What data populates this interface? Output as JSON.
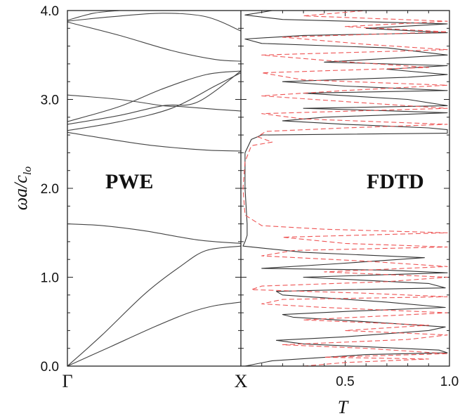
{
  "chart_data": {
    "type": "line",
    "ylabel": "ωa/c",
    "ylabel_sub": "lo",
    "ylim": [
      0,
      4
    ],
    "yticks": [
      "0.0",
      "1.0",
      "2.0",
      "3.0",
      "4.0"
    ],
    "colors": {
      "axis": "#222222",
      "band": "#555555",
      "pwe": "#444444",
      "fdtd_black": "#333333",
      "fdtd_red": "#ee5555"
    },
    "panels": [
      {
        "id": "pwe",
        "label": "PWE",
        "xaxis": "k-path",
        "xtick_labels": [
          "Γ",
          "X"
        ],
        "bands": [
          [
            [
              0,
              0
            ],
            [
              0.2,
              0.35
            ],
            [
              0.45,
              0.82
            ],
            [
              0.65,
              1.12
            ],
            [
              0.8,
              1.3
            ],
            [
              1,
              1.35
            ]
          ],
          [
            [
              0,
              0
            ],
            [
              0.25,
              0.22
            ],
            [
              0.5,
              0.44
            ],
            [
              0.7,
              0.6
            ],
            [
              0.85,
              0.68
            ],
            [
              1,
              0.72
            ]
          ],
          [
            [
              0,
              1.6
            ],
            [
              0.2,
              1.58
            ],
            [
              0.45,
              1.52
            ],
            [
              0.75,
              1.42
            ],
            [
              1,
              1.38
            ]
          ],
          [
            [
              0,
              2.63
            ],
            [
              0.25,
              2.55
            ],
            [
              0.5,
              2.48
            ],
            [
              0.8,
              2.43
            ],
            [
              1,
              2.42
            ]
          ],
          [
            [
              0,
              2.65
            ],
            [
              0.3,
              2.75
            ],
            [
              0.6,
              2.9
            ],
            [
              0.85,
              3.15
            ],
            [
              1,
              3.3
            ]
          ],
          [
            [
              0,
              2.72
            ],
            [
              0.3,
              2.82
            ],
            [
              0.55,
              2.93
            ],
            [
              0.75,
              2.97
            ],
            [
              1,
              3.32
            ]
          ],
          [
            [
              0,
              3.05
            ],
            [
              0.3,
              3.0
            ],
            [
              0.55,
              2.93
            ],
            [
              0.65,
              2.92
            ],
            [
              0.85,
              2.89
            ],
            [
              1,
              2.87
            ]
          ],
          [
            [
              0,
              2.75
            ],
            [
              0.3,
              2.92
            ],
            [
              0.55,
              3.12
            ],
            [
              0.8,
              3.28
            ],
            [
              1,
              3.32
            ]
          ],
          [
            [
              0,
              3.87
            ],
            [
              0.3,
              3.72
            ],
            [
              0.6,
              3.55
            ],
            [
              0.85,
              3.45
            ],
            [
              1,
              3.43
            ]
          ],
          [
            [
              0,
              3.88
            ],
            [
              0.25,
              3.93
            ],
            [
              0.55,
              3.97
            ],
            [
              0.8,
              3.93
            ],
            [
              1,
              3.77
            ]
          ],
          [
            [
              0,
              3.89
            ],
            [
              0.15,
              3.97
            ],
            [
              0.3,
              4.0
            ]
          ]
        ]
      },
      {
        "id": "fdtd",
        "label": "FDTD",
        "xlabel": "T",
        "xlim": [
          0,
          1
        ],
        "xtick_labels": [
          "X",
          "0.5",
          "1.0"
        ],
        "series": [
          {
            "color_key": "fdtd_black",
            "points": [
              [
                0.02,
                0
              ],
              [
                0.15,
                0.06
              ],
              [
                0.6,
                0.13
              ],
              [
                0.99,
                0.15
              ],
              [
                0.95,
                0.18
              ],
              [
                0.3,
                0.25
              ],
              [
                0.17,
                0.29
              ],
              [
                0.5,
                0.33
              ],
              [
                0.9,
                0.4
              ],
              [
                0.98,
                0.44
              ],
              [
                0.6,
                0.5
              ],
              [
                0.25,
                0.55
              ],
              [
                0.2,
                0.58
              ],
              [
                0.55,
                0.62
              ],
              [
                0.98,
                0.66
              ],
              [
                0.7,
                0.72
              ],
              [
                0.2,
                0.8
              ],
              [
                0.17,
                0.84
              ],
              [
                0.5,
                0.86
              ],
              [
                0.98,
                0.88
              ],
              [
                0.9,
                0.93
              ],
              [
                0.3,
                1.0
              ],
              [
                0.99,
                1.05
              ],
              [
                0.7,
                1.08
              ],
              [
                0.1,
                1.1
              ],
              [
                0.45,
                1.15
              ],
              [
                0.88,
                1.22
              ],
              [
                0.3,
                1.28
              ],
              [
                0.01,
                1.35
              ],
              [
                0.02,
                1.4
              ],
              [
                0.03,
                1.47
              ],
              [
                0.03,
                1.6
              ],
              [
                0.02,
                2.0
              ],
              [
                0.02,
                2.4
              ],
              [
                0.05,
                2.55
              ],
              [
                0.1,
                2.6
              ],
              [
                0.99,
                2.62
              ],
              [
                0.99,
                2.66
              ],
              [
                0.9,
                2.68
              ],
              [
                0.5,
                2.72
              ],
              [
                0.2,
                2.76
              ],
              [
                0.4,
                2.8
              ],
              [
                0.99,
                2.85
              ],
              [
                0.6,
                2.88
              ],
              [
                0.3,
                2.9
              ],
              [
                0.99,
                2.93
              ],
              [
                0.8,
                3.0
              ],
              [
                0.3,
                3.07
              ],
              [
                0.99,
                3.1
              ],
              [
                0.5,
                3.15
              ],
              [
                0.2,
                3.2
              ],
              [
                0.8,
                3.25
              ],
              [
                0.99,
                3.28
              ],
              [
                0.7,
                3.34
              ],
              [
                0.99,
                3.38
              ],
              [
                0.4,
                3.42
              ],
              [
                0.99,
                3.5
              ],
              [
                0.7,
                3.58
              ],
              [
                0.1,
                3.63
              ],
              [
                0.02,
                3.68
              ],
              [
                0.3,
                3.72
              ],
              [
                0.99,
                3.75
              ],
              [
                0.6,
                3.8
              ],
              [
                0.99,
                3.85
              ],
              [
                0.2,
                3.9
              ],
              [
                0.02,
                3.95
              ],
              [
                0.15,
                4.0
              ]
            ]
          },
          {
            "color_key": "fdtd_red",
            "dashed": true,
            "points": [
              [
                0.3,
                0
              ],
              [
                0.5,
                0.04
              ],
              [
                0.9,
                0.08
              ],
              [
                0.4,
                0.1
              ],
              [
                0.99,
                0.14
              ],
              [
                0.6,
                0.2
              ],
              [
                0.2,
                0.24
              ],
              [
                0.8,
                0.3
              ],
              [
                0.99,
                0.35
              ],
              [
                0.5,
                0.4
              ],
              [
                0.9,
                0.46
              ],
              [
                0.3,
                0.52
              ],
              [
                0.99,
                0.6
              ],
              [
                0.4,
                0.66
              ],
              [
                0.1,
                0.7
              ],
              [
                0.2,
                0.75
              ],
              [
                0.99,
                0.78
              ],
              [
                0.6,
                0.82
              ],
              [
                0.05,
                0.86
              ],
              [
                0.1,
                0.9
              ],
              [
                0.7,
                0.95
              ],
              [
                0.99,
                1.0
              ],
              [
                0.4,
                1.06
              ],
              [
                0.99,
                1.12
              ],
              [
                0.6,
                1.18
              ],
              [
                0.1,
                1.24
              ],
              [
                0.25,
                1.3
              ],
              [
                0.99,
                1.34
              ],
              [
                0.5,
                1.38
              ],
              [
                0.2,
                1.45
              ],
              [
                0.99,
                1.5
              ],
              [
                0.4,
                1.54
              ],
              [
                0.1,
                1.58
              ],
              [
                0.02,
                1.7
              ],
              [
                0.01,
                2.0
              ],
              [
                0.02,
                2.3
              ],
              [
                0.05,
                2.48
              ],
              [
                0.15,
                2.52
              ],
              [
                0.08,
                2.58
              ],
              [
                0.12,
                2.64
              ],
              [
                0.5,
                2.68
              ],
              [
                0.99,
                2.72
              ],
              [
                0.3,
                2.78
              ],
              [
                0.1,
                2.84
              ],
              [
                0.99,
                2.9
              ],
              [
                0.6,
                2.96
              ],
              [
                0.1,
                3.04
              ],
              [
                0.5,
                3.1
              ],
              [
                0.99,
                3.16
              ],
              [
                0.3,
                3.22
              ],
              [
                0.1,
                3.3
              ],
              [
                0.9,
                3.36
              ],
              [
                0.4,
                3.44
              ],
              [
                0.1,
                3.5
              ],
              [
                0.99,
                3.56
              ],
              [
                0.6,
                3.62
              ],
              [
                0.2,
                3.7
              ],
              [
                0.99,
                3.76
              ],
              [
                0.5,
                3.82
              ],
              [
                0.99,
                3.88
              ],
              [
                0.3,
                3.94
              ],
              [
                0.6,
                4.0
              ]
            ]
          }
        ]
      }
    ]
  }
}
